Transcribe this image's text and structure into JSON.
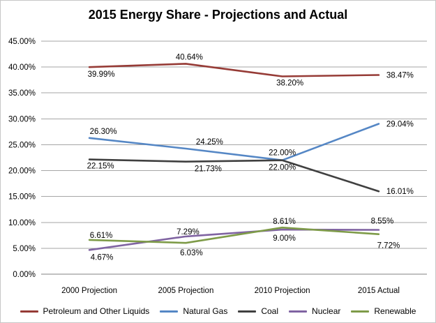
{
  "chart_data": {
    "type": "line",
    "title": "2015 Energy Share - Projections and Actual",
    "categories": [
      "2000 Projection",
      "2005 Projection",
      "2010 Projection",
      "2015 Actual"
    ],
    "y_axis": {
      "min": 0,
      "max": 45,
      "step": 5,
      "tick_labels": [
        "0.00%",
        "5.00%",
        "10.00%",
        "15.00%",
        "20.00%",
        "25.00%",
        "30.00%",
        "35.00%",
        "40.00%",
        "45.00%"
      ]
    },
    "grid": true,
    "legend_position": "bottom",
    "grid_color": "#a6a6a6",
    "axis_color": "#808080",
    "series": [
      {
        "name": "Petroleum and Other Liquids",
        "color": "#963b36",
        "values": [
          39.99,
          40.64,
          38.2,
          38.47
        ],
        "labels": [
          "39.99%",
          "40.64%",
          "38.20%",
          "38.47%"
        ],
        "label_pos": [
          [
            "m",
            17,
            14
          ],
          [
            "m",
            5,
            -6
          ],
          [
            "m",
            11,
            13
          ],
          [
            "s",
            11,
            4
          ]
        ]
      },
      {
        "name": "Natural Gas",
        "color": "#5587c5",
        "values": [
          26.3,
          24.25,
          22.0,
          29.04
        ],
        "labels": [
          "26.30%",
          "24.25%",
          "22.00%",
          "29.04%"
        ],
        "label_pos": [
          [
            "m",
            20,
            -6
          ],
          [
            "m",
            34,
            -6
          ],
          [
            "m",
            0,
            -7
          ],
          [
            "s",
            11,
            4
          ]
        ]
      },
      {
        "name": "Coal",
        "color": "#404040",
        "values": [
          22.15,
          21.73,
          22.0,
          16.01
        ],
        "labels": [
          "22.15%",
          "21.73%",
          "22.00%",
          "16.01%"
        ],
        "label_pos": [
          [
            "m",
            16,
            13
          ],
          [
            "m",
            32,
            14
          ],
          [
            "m",
            0,
            14
          ],
          [
            "s",
            11,
            4
          ]
        ]
      },
      {
        "name": "Nuclear",
        "color": "#8064a2",
        "values": [
          4.67,
          7.29,
          8.61,
          8.55
        ],
        "labels": [
          "4.67%",
          "7.29%",
          "8.61%",
          "8.55%"
        ],
        "label_pos": [
          [
            "m",
            18,
            14
          ],
          [
            "m",
            3,
            -3
          ],
          [
            "m",
            3,
            -8
          ],
          [
            "m",
            5,
            -9
          ]
        ]
      },
      {
        "name": "Renewable",
        "color": "#7e9b48",
        "values": [
          6.61,
          6.03,
          9.0,
          7.72
        ],
        "labels": [
          "6.61%",
          "6.03%",
          "9.00%",
          "7.72%"
        ],
        "label_pos": [
          [
            "m",
            17,
            -3
          ],
          [
            "m",
            8,
            18
          ],
          [
            "m",
            3,
            19
          ],
          [
            "m",
            14,
            20
          ]
        ]
      }
    ]
  }
}
